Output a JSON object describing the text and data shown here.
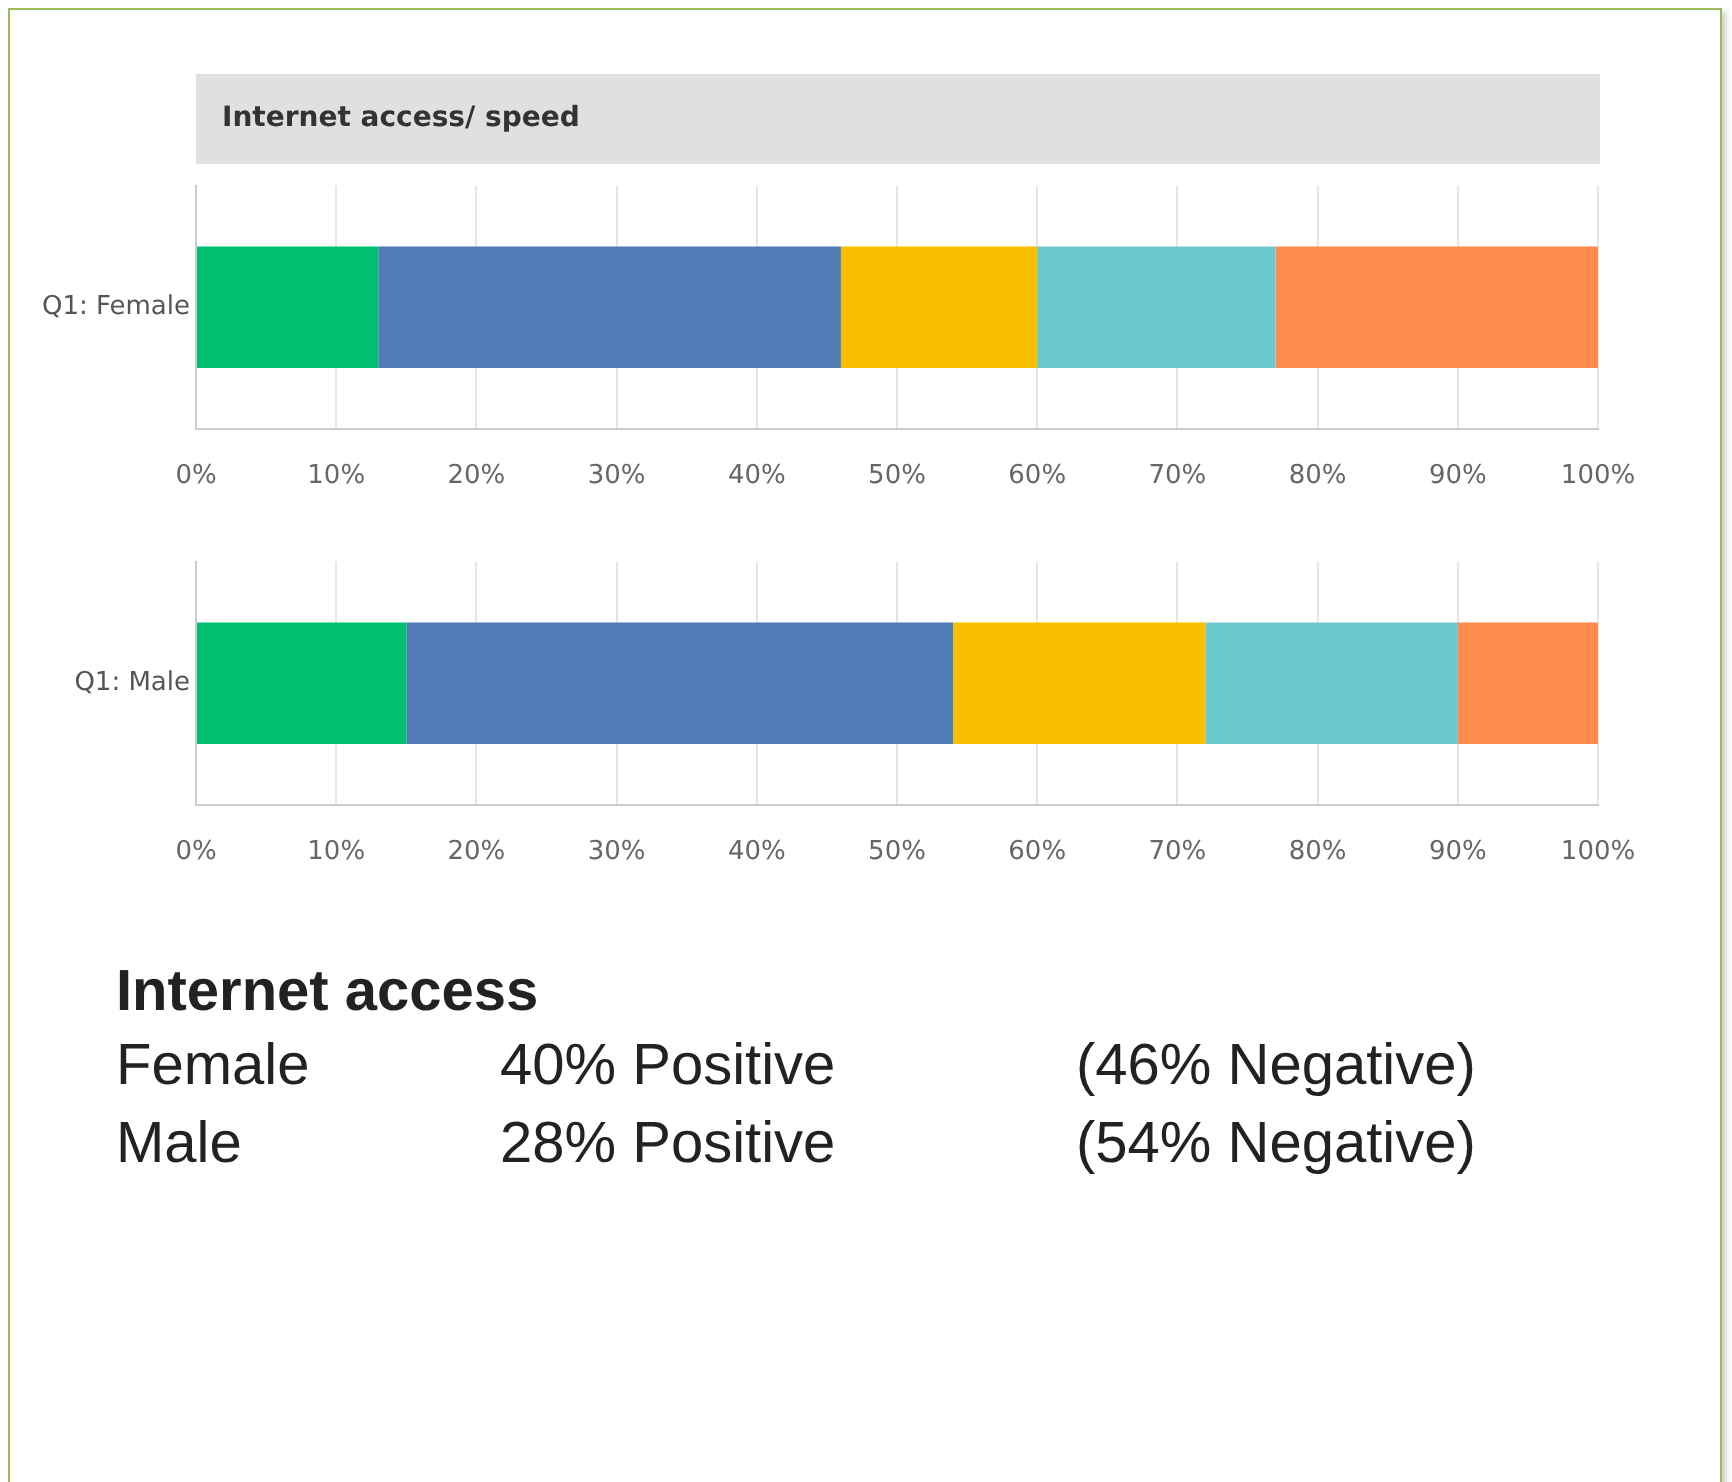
{
  "chart_data": [
    {
      "type": "bar",
      "title": "Internet access/ speed",
      "orientation": "horizontal",
      "stacked": true,
      "grid": "x",
      "categories": [
        "Q1: Female"
      ],
      "series": [
        {
          "color": "#00bf6f",
          "values": [
            13
          ]
        },
        {
          "color": "#507cb6",
          "values": [
            33
          ]
        },
        {
          "color": "#f9be00",
          "values": [
            14
          ]
        },
        {
          "color": "#6bc8cd",
          "values": [
            17
          ]
        },
        {
          "color": "#ff8b4f",
          "values": [
            23
          ]
        }
      ],
      "xlim": [
        0,
        100
      ],
      "xticks": [
        {
          "value": 0,
          "label": "0%"
        },
        {
          "value": 10,
          "label": "10%"
        },
        {
          "value": 20,
          "label": "20%"
        },
        {
          "value": 30,
          "label": "30%"
        },
        {
          "value": 40,
          "label": "40%"
        },
        {
          "value": 50,
          "label": "50%"
        },
        {
          "value": 60,
          "label": "60%"
        },
        {
          "value": 70,
          "label": "70%"
        },
        {
          "value": 80,
          "label": "80%"
        },
        {
          "value": 90,
          "label": "90%"
        },
        {
          "value": 100,
          "label": "100%"
        }
      ]
    },
    {
      "type": "bar",
      "orientation": "horizontal",
      "stacked": true,
      "grid": "x",
      "categories": [
        "Q1: Male"
      ],
      "series": [
        {
          "color": "#00bf6f",
          "values": [
            15
          ]
        },
        {
          "color": "#507cb6",
          "values": [
            39
          ]
        },
        {
          "color": "#f9be00",
          "values": [
            18
          ]
        },
        {
          "color": "#6bc8cd",
          "values": [
            18
          ]
        },
        {
          "color": "#ff8b4f",
          "values": [
            10
          ]
        }
      ],
      "xlim": [
        0,
        100
      ],
      "xticks": [
        {
          "value": 0,
          "label": "0%"
        },
        {
          "value": 10,
          "label": "10%"
        },
        {
          "value": 20,
          "label": "20%"
        },
        {
          "value": 30,
          "label": "30%"
        },
        {
          "value": 40,
          "label": "40%"
        },
        {
          "value": 50,
          "label": "50%"
        },
        {
          "value": 60,
          "label": "60%"
        },
        {
          "value": 70,
          "label": "70%"
        },
        {
          "value": 80,
          "label": "80%"
        },
        {
          "value": 90,
          "label": "90%"
        },
        {
          "value": 100,
          "label": "100%"
        }
      ]
    },
    {
      "type": "other",
      "title": "Internet access",
      "annotations": [
        "Female",
        "40% Positive",
        "(46% Negative)",
        "Male",
        "28% Positive",
        "(54% Negative)"
      ]
    }
  ]
}
